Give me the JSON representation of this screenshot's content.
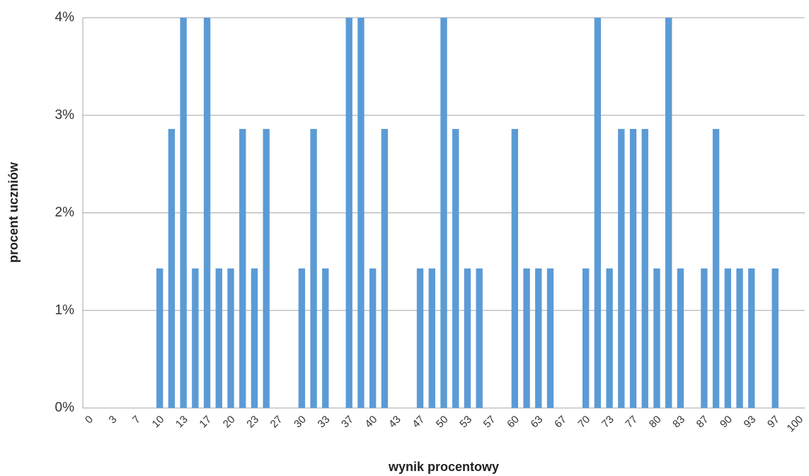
{
  "chart_data": {
    "type": "bar",
    "x_label": "wynik procentowy",
    "y_label": "procent uczniów",
    "categories": [
      "0",
      null,
      "3",
      null,
      "7",
      null,
      "10",
      null,
      "13",
      null,
      "17",
      null,
      "20",
      null,
      "23",
      null,
      "27",
      null,
      "30",
      null,
      "33",
      null,
      "37",
      null,
      "40",
      null,
      "43",
      null,
      "47",
      null,
      "50",
      null,
      "53",
      null,
      "57",
      null,
      "60",
      null,
      "63",
      null,
      "67",
      null,
      "70",
      null,
      "73",
      null,
      "77",
      null,
      "80",
      null,
      "83",
      null,
      "87",
      null,
      "90",
      null,
      "93",
      null,
      "97",
      null,
      "100"
    ],
    "values": [
      0,
      0,
      0,
      0,
      0,
      0,
      1.43,
      2.86,
      4,
      1.43,
      4,
      1.43,
      1.43,
      2.86,
      1.43,
      2.86,
      0,
      0,
      1.43,
      2.86,
      1.43,
      0,
      4,
      4,
      1.43,
      2.86,
      0,
      0,
      1.43,
      1.43,
      4,
      2.86,
      1.43,
      1.43,
      0,
      0,
      2.86,
      1.43,
      1.43,
      1.43,
      0,
      0,
      1.43,
      4,
      1.43,
      2.86,
      2.86,
      2.86,
      1.43,
      4,
      1.43,
      0,
      1.43,
      2.86,
      1.43,
      1.43,
      1.43,
      0,
      1.43,
      0,
      0
    ],
    "color": "#5b9bd5",
    "ylim": [
      0,
      4
    ],
    "yticks": [
      {
        "value": 0,
        "label": "0%"
      },
      {
        "value": 1,
        "label": "1%"
      },
      {
        "value": 2,
        "label": "2%"
      },
      {
        "value": 3,
        "label": "3%"
      },
      {
        "value": 4,
        "label": "4%"
      }
    ],
    "grid": true
  }
}
